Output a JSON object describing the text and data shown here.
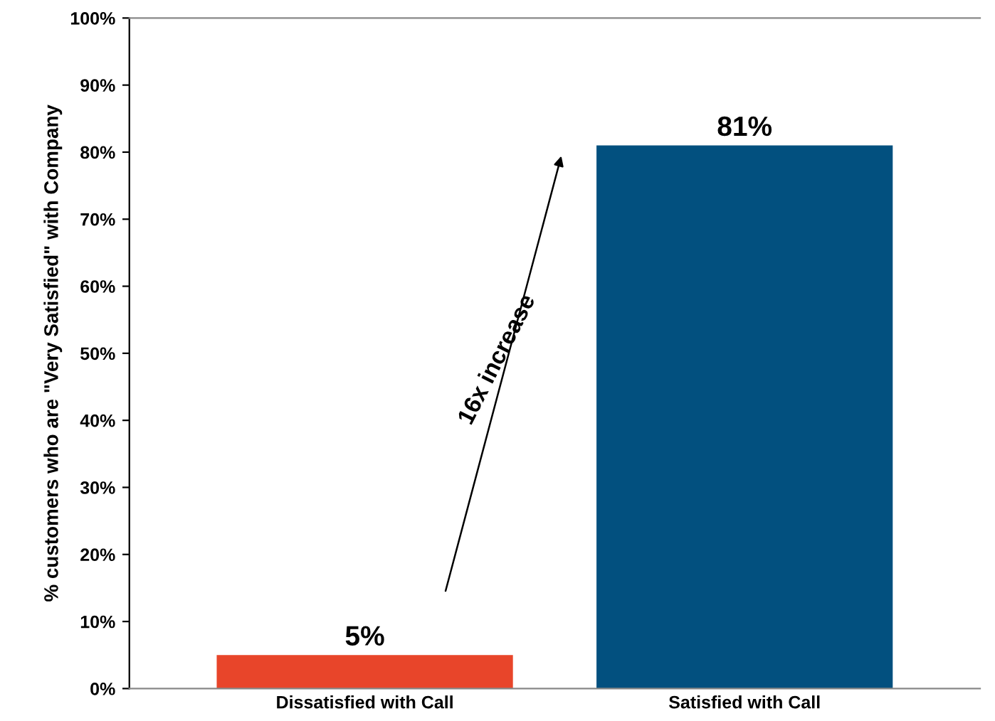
{
  "chart_data": {
    "type": "bar",
    "ylabel": "% customers who are \"Very Satisfied\" with Company",
    "categories": [
      "Dissatisfied with Call",
      "Satisfied with Call"
    ],
    "values": [
      5,
      81
    ],
    "value_labels": [
      "5%",
      "81%"
    ],
    "colors": [
      "#e8452a",
      "#02507f"
    ],
    "ylim": [
      0,
      100
    ],
    "yticks": [
      {
        "value": 0,
        "label": "0%"
      },
      {
        "value": 10,
        "label": "10%"
      },
      {
        "value": 20,
        "label": "20%"
      },
      {
        "value": 30,
        "label": "30%"
      },
      {
        "value": 40,
        "label": "40%"
      },
      {
        "value": 50,
        "label": "50%"
      },
      {
        "value": 60,
        "label": "60%"
      },
      {
        "value": 70,
        "label": "70%"
      },
      {
        "value": 80,
        "label": "80%"
      },
      {
        "value": 90,
        "label": "90%"
      },
      {
        "value": 100,
        "label": "100%"
      }
    ],
    "annotations": [
      "16x increase"
    ],
    "grid": false
  }
}
